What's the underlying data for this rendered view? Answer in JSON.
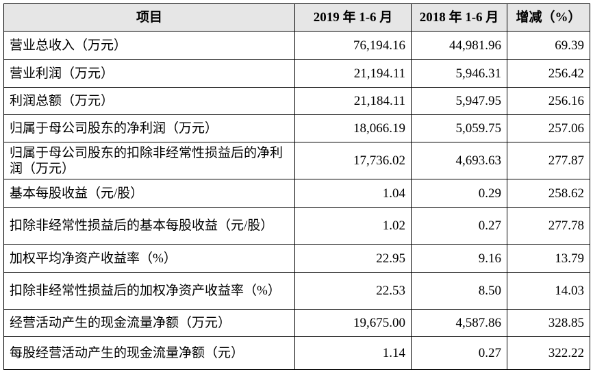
{
  "table": {
    "header": [
      "项目",
      "2019 年 1-6 月",
      "2018 年 1-6 月",
      "增减（%）"
    ],
    "rows": [
      [
        "营业总收入（万元）",
        "76,194.16",
        "44,981.96",
        "69.39"
      ],
      [
        "营业利润（万元）",
        "21,194.11",
        "5,946.31",
        "256.42"
      ],
      [
        "利润总额（万元）",
        "21,184.11",
        "5,947.95",
        "256.16"
      ],
      [
        "归属于母公司股东的净利润（万元）",
        "18,066.19",
        "5,059.75",
        "257.06"
      ],
      [
        "归属于母公司股东的扣除非经常性损益后的净利润（万元）",
        "17,736.02",
        "4,693.63",
        "277.87"
      ],
      [
        "基本每股收益（元/股）",
        "1.04",
        "0.29",
        "258.62"
      ],
      [
        "扣除非经常性损益后的基本每股收益（元/股）",
        "1.02",
        "0.27",
        "277.78"
      ],
      [
        "加权平均净资产收益率（%）",
        "22.95",
        "9.16",
        "13.79"
      ],
      [
        "扣除非经常性损益后的加权净资产收益率（%）",
        "22.53",
        "8.50",
        "14.03"
      ],
      [
        "经营活动产生的现金流量净额（万元）",
        "19,675.00",
        "4,587.86",
        "328.85"
      ],
      [
        "每股经营活动产生的现金流量净额（元）",
        "1.14",
        "0.27",
        "322.22"
      ]
    ]
  }
}
